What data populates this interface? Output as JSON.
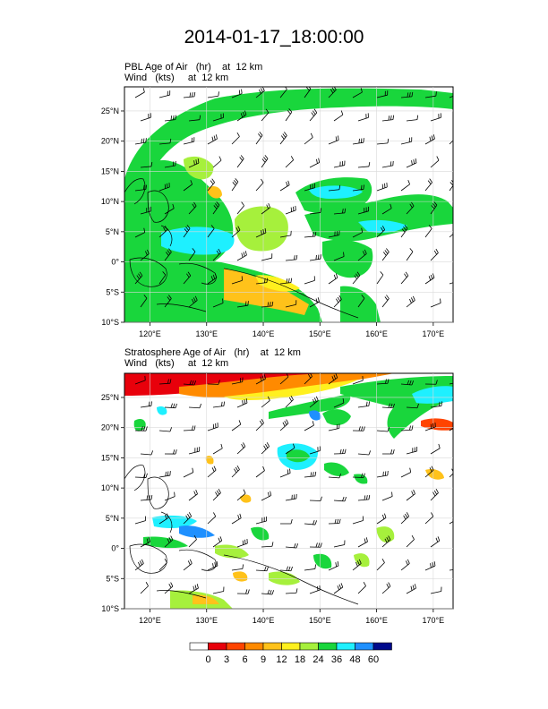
{
  "title": "2014-01-17_18:00:00",
  "panels": [
    {
      "field_label": "PBL Age of Air",
      "field_units": "(hr)",
      "field_level": "at  12 km",
      "wind_label": "Wind",
      "wind_units": "(kts)",
      "wind_level": "at  12 km"
    },
    {
      "field_label": "Stratosphere Age of Air",
      "field_units": "(hr)",
      "field_level": "at  12 km",
      "wind_label": "Wind",
      "wind_units": "(kts)",
      "wind_level": "at  12 km"
    }
  ],
  "map": {
    "lon_range": [
      115.5,
      173.5
    ],
    "lat_range": [
      -10,
      29
    ],
    "lon_ticks": [
      120,
      130,
      140,
      150,
      160,
      170
    ],
    "lon_tick_labels": [
      "120°E",
      "130°E",
      "140°E",
      "150°E",
      "160°E",
      "170°E"
    ],
    "lat_ticks": [
      25,
      20,
      15,
      10,
      5,
      0,
      -5,
      -10
    ],
    "lat_tick_labels": [
      "25°N",
      "20°N",
      "15°N",
      "10°N",
      "5°N",
      "0°",
      "5°S",
      "10°S"
    ]
  },
  "colorbar": {
    "labels": [
      "0",
      "3",
      "6",
      "9",
      "12",
      "18",
      "24",
      "36",
      "48",
      "60"
    ],
    "colors": [
      "#ffffff",
      "#e8000b",
      "#ff4400",
      "#ff8a00",
      "#ffc21a",
      "#fff01e",
      "#a6f03c",
      "#19d63c",
      "#1ef0ff",
      "#1e90ff",
      "#000a8c"
    ]
  }
}
